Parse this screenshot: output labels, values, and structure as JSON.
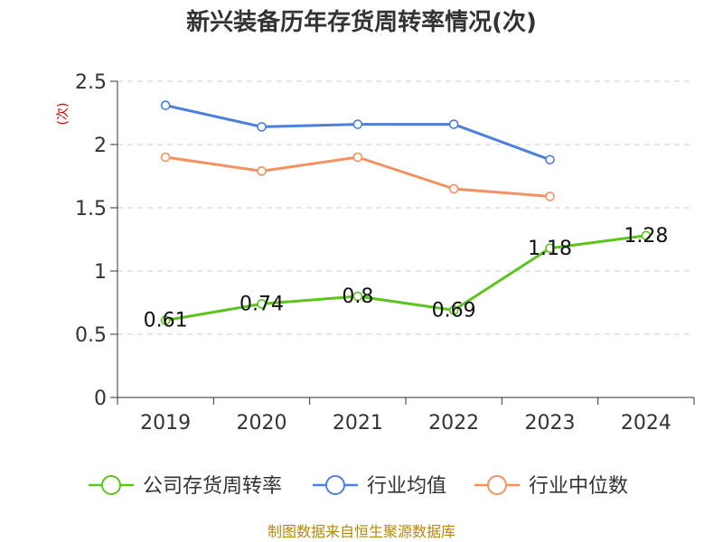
{
  "chart_data": {
    "type": "line",
    "title": "新兴装备历年存货周转率情况(次)",
    "unit": "(次)",
    "categories": [
      "2019",
      "2020",
      "2021",
      "2022",
      "2023",
      "2024"
    ],
    "y_ticks": [
      "0",
      "0.5",
      "1",
      "1.5",
      "2",
      "2.5"
    ],
    "ylim": [
      0,
      2.5
    ],
    "grid": true,
    "legend_position": "bottom",
    "series": [
      {
        "name": "公司存货周转率",
        "color": "#5cc41d",
        "values": [
          0.61,
          0.74,
          0.8,
          0.69,
          1.18,
          1.28
        ],
        "labels": [
          "0.61",
          "0.74",
          "0.8",
          "0.69",
          "1.18",
          "1.28"
        ]
      },
      {
        "name": "行业均值",
        "color": "#4e7fdb",
        "values": [
          2.31,
          2.14,
          2.16,
          2.16,
          1.88,
          null
        ]
      },
      {
        "name": "行业中位数",
        "color": "#f59160",
        "values": [
          1.9,
          1.79,
          1.9,
          1.65,
          1.59,
          null
        ]
      }
    ],
    "source": "制图数据来自恒生聚源数据库"
  }
}
